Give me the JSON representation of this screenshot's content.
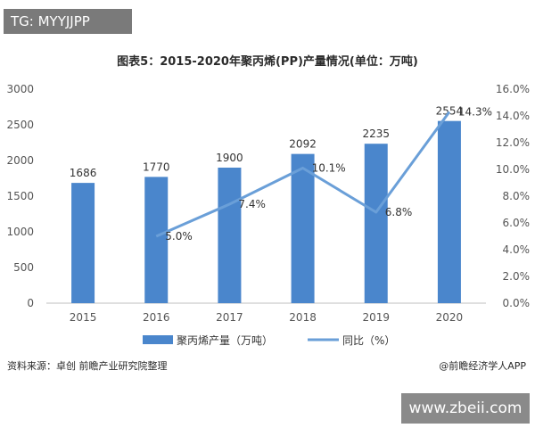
{
  "watermark_tag": "TG: MYYJJPP",
  "site_label": "www.zbeii.com",
  "source_note": "资料来源：卓创 前瞻产业研究院整理",
  "credit": "@前瞻经济学人APP",
  "chart_data": {
    "type": "bar",
    "title": "图表5：2015-2020年聚丙烯(PP)产量情况(单位：万吨)",
    "categories": [
      "2015",
      "2016",
      "2017",
      "2018",
      "2019",
      "2020"
    ],
    "series": [
      {
        "name": "聚丙烯产量（万吨）",
        "type": "bar",
        "axis": "left",
        "values": [
          1686,
          1770,
          1900,
          2092,
          2235,
          2554
        ],
        "color": "#4a86cc"
      },
      {
        "name": "同比（%）",
        "type": "line",
        "axis": "right",
        "values": [
          null,
          5.0,
          7.4,
          10.1,
          6.8,
          14.3
        ],
        "labels": [
          "",
          "5.0%",
          "7.4%",
          "10.1%",
          "6.8%",
          "14.3%"
        ],
        "color": "#6a9fd8"
      }
    ],
    "y_left": {
      "min": 0,
      "max": 3000,
      "ticks": [
        "0",
        "500",
        "1000",
        "1500",
        "2000",
        "2500",
        "3000"
      ]
    },
    "y_right": {
      "min": 0,
      "max": 16,
      "ticks": [
        "0.0%",
        "2.0%",
        "4.0%",
        "6.0%",
        "8.0%",
        "10.0%",
        "12.0%",
        "14.0%",
        "16.0%"
      ]
    },
    "grid": false,
    "legend": "bottom"
  }
}
